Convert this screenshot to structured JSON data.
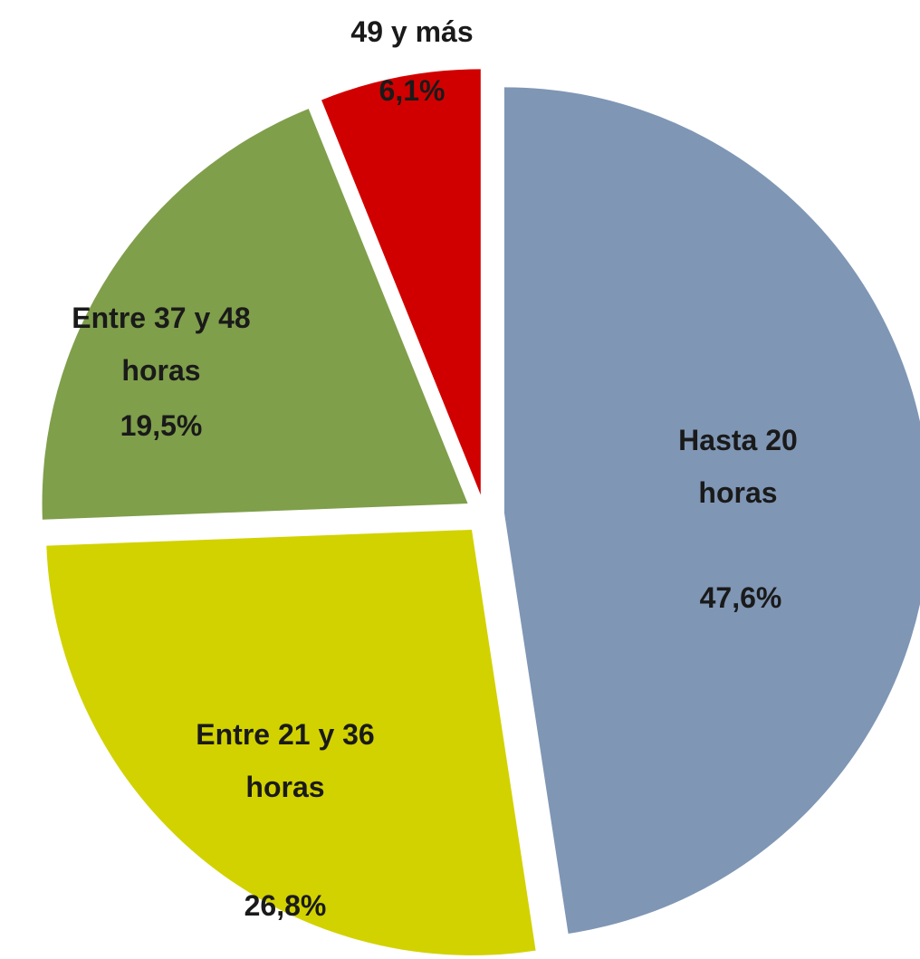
{
  "chart_data": {
    "type": "pie",
    "categories": [
      "Hasta 20 horas",
      "Entre 21 y 36 horas",
      "Entre 37 y 48 horas",
      "49 y más"
    ],
    "values": [
      47.6,
      26.8,
      19.5,
      6.1
    ],
    "value_labels": [
      "47,6%",
      "26,8%",
      "19,5%",
      "6,1%"
    ],
    "colors": [
      "#7f96b5",
      "#d2d200",
      "#7f9f4b",
      "#d10000"
    ]
  }
}
